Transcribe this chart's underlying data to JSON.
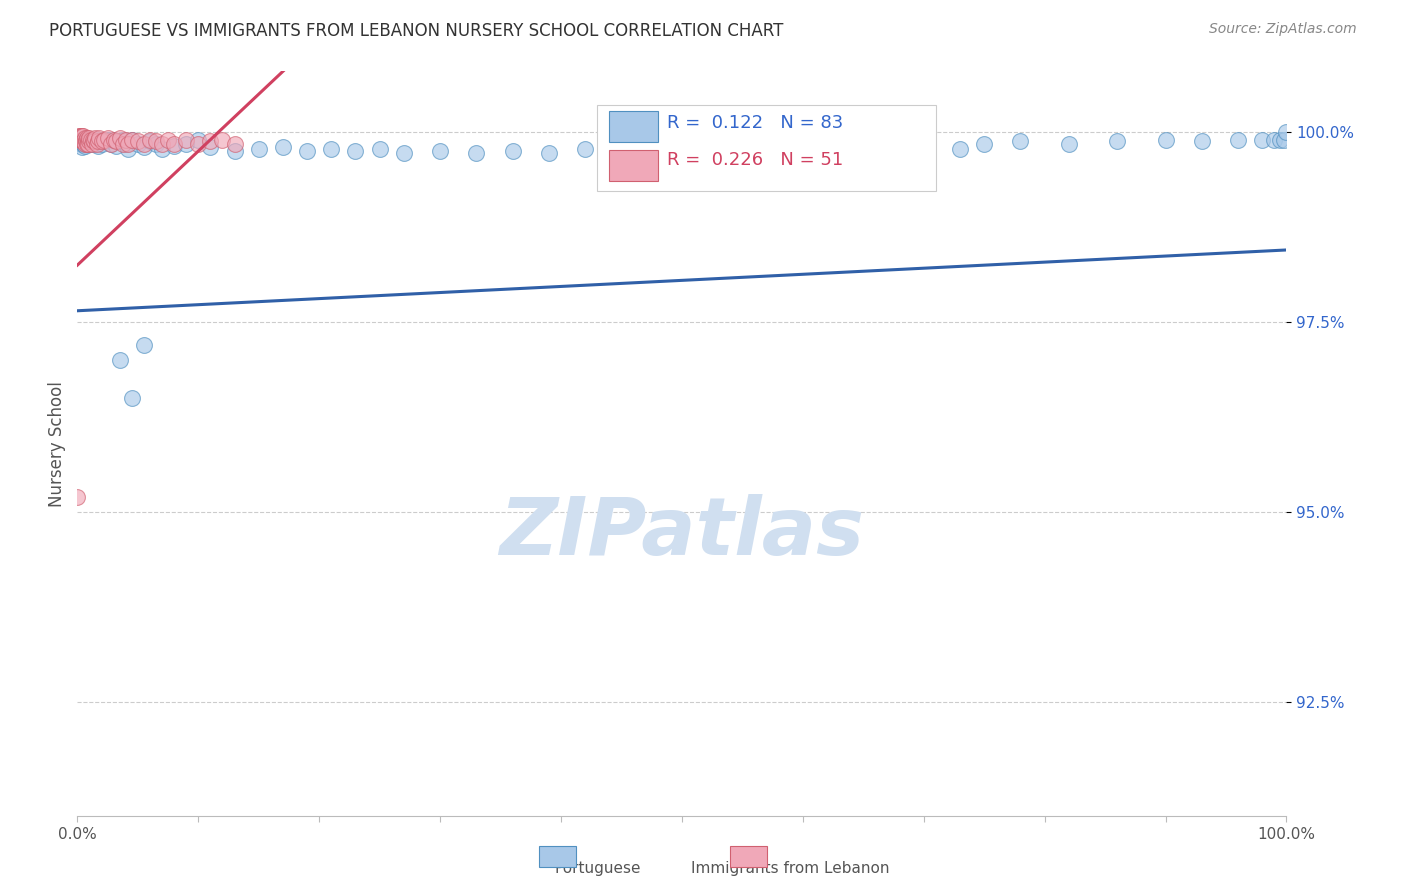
{
  "title": "PORTUGUESE VS IMMIGRANTS FROM LEBANON NURSERY SCHOOL CORRELATION CHART",
  "source": "Source: ZipAtlas.com",
  "ylabel": "Nursery School",
  "ytick_labels": [
    "92.5%",
    "95.0%",
    "97.5%",
    "100.0%"
  ],
  "ytick_values": [
    0.925,
    0.95,
    0.975,
    1.0
  ],
  "xlim": [
    0.0,
    1.0
  ],
  "ylim": [
    0.91,
    1.008
  ],
  "legend_blue_r": "0.122",
  "legend_blue_n": "83",
  "legend_pink_r": "0.226",
  "legend_pink_n": "51",
  "blue_scatter_color": "#a8c8e8",
  "blue_edge_color": "#5090c0",
  "pink_scatter_color": "#f0a8b8",
  "pink_edge_color": "#d06070",
  "blue_line_color": "#3060a8",
  "pink_line_color": "#d04060",
  "title_color": "#333333",
  "axis_label_color": "#555555",
  "right_tick_color": "#3366cc",
  "watermark_color": "#d0dff0",
  "background_color": "#ffffff",
  "grid_color": "#cccccc",
  "blue_x": [
    0.001,
    0.002,
    0.003,
    0.003,
    0.004,
    0.004,
    0.005,
    0.005,
    0.006,
    0.006,
    0.007,
    0.007,
    0.008,
    0.009,
    0.01,
    0.01,
    0.011,
    0.012,
    0.012,
    0.013,
    0.014,
    0.015,
    0.016,
    0.017,
    0.018,
    0.02,
    0.022,
    0.025,
    0.028,
    0.03,
    0.032,
    0.035,
    0.038,
    0.04,
    0.042,
    0.045,
    0.05,
    0.055,
    0.06,
    0.065,
    0.07,
    0.08,
    0.09,
    0.1,
    0.11,
    0.13,
    0.15,
    0.17,
    0.19,
    0.21,
    0.23,
    0.25,
    0.27,
    0.3,
    0.33,
    0.36,
    0.39,
    0.42,
    0.45,
    0.48,
    0.5,
    0.54,
    0.58,
    0.62,
    0.65,
    0.68,
    0.7,
    0.73,
    0.75,
    0.78,
    0.82,
    0.86,
    0.9,
    0.93,
    0.96,
    0.98,
    0.99,
    0.995,
    0.998,
    1.0,
    0.035,
    0.045,
    0.055
  ],
  "blue_y": [
    0.999,
    0.999,
    0.9992,
    0.9985,
    0.9988,
    0.998,
    0.999,
    0.9985,
    0.9988,
    0.9982,
    0.999,
    0.9985,
    0.9988,
    0.999,
    0.999,
    0.9985,
    0.9988,
    0.999,
    0.9985,
    0.9988,
    0.999,
    0.9985,
    0.9988,
    0.9982,
    0.999,
    0.9985,
    0.9988,
    0.999,
    0.9985,
    0.999,
    0.9982,
    0.9988,
    0.999,
    0.9985,
    0.9978,
    0.999,
    0.9985,
    0.998,
    0.9988,
    0.9985,
    0.9978,
    0.9982,
    0.9985,
    0.999,
    0.998,
    0.9975,
    0.9978,
    0.998,
    0.9975,
    0.9978,
    0.9975,
    0.9978,
    0.9972,
    0.9975,
    0.9972,
    0.9975,
    0.9972,
    0.9978,
    0.9972,
    0.9975,
    0.9978,
    0.9972,
    0.9975,
    0.9972,
    0.9978,
    0.9975,
    0.9985,
    0.9978,
    0.9985,
    0.9988,
    0.9985,
    0.9988,
    0.999,
    0.9988,
    0.999,
    0.999,
    0.999,
    0.999,
    0.999,
    1.0,
    0.97,
    0.965,
    0.972
  ],
  "pink_x": [
    0.001,
    0.002,
    0.002,
    0.003,
    0.003,
    0.004,
    0.004,
    0.005,
    0.005,
    0.006,
    0.006,
    0.007,
    0.007,
    0.008,
    0.008,
    0.009,
    0.009,
    0.01,
    0.01,
    0.011,
    0.012,
    0.013,
    0.014,
    0.015,
    0.016,
    0.017,
    0.018,
    0.02,
    0.022,
    0.025,
    0.028,
    0.03,
    0.032,
    0.035,
    0.038,
    0.04,
    0.042,
    0.045,
    0.05,
    0.055,
    0.06,
    0.065,
    0.07,
    0.075,
    0.08,
    0.09,
    0.1,
    0.11,
    0.12,
    0.13,
    0.0
  ],
  "pink_y": [
    0.9995,
    0.9995,
    0.999,
    0.9995,
    0.999,
    0.9995,
    0.999,
    0.9995,
    0.9988,
    0.9992,
    0.9985,
    0.999,
    0.9988,
    0.9992,
    0.9985,
    0.999,
    0.9985,
    0.9988,
    0.9992,
    0.999,
    0.9985,
    0.999,
    0.9988,
    0.9992,
    0.9985,
    0.9988,
    0.9992,
    0.9988,
    0.999,
    0.9992,
    0.9985,
    0.999,
    0.9988,
    0.9992,
    0.9985,
    0.999,
    0.9985,
    0.999,
    0.9988,
    0.9985,
    0.999,
    0.9988,
    0.9985,
    0.999,
    0.9985,
    0.999,
    0.9985,
    0.9988,
    0.999,
    0.9985,
    0.952
  ],
  "blue_line_x0": 0.0,
  "blue_line_x1": 1.0,
  "blue_line_y0": 0.9765,
  "blue_line_y1": 0.9845,
  "pink_line_x0": 0.0,
  "pink_line_x1": 0.13,
  "pink_line_y0": 0.9825,
  "pink_line_y1": 1.002
}
